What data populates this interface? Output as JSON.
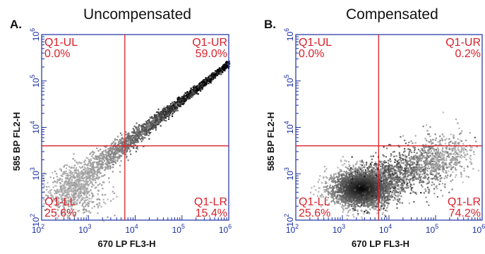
{
  "colors": {
    "axis": "#1a2fa0",
    "gate": "#d9202a",
    "density_low": "#c8c8c8",
    "density_high": "#000000"
  },
  "chart_data": [
    {
      "type": "scatter",
      "panel_letter": "A.",
      "title": "Uncompensated",
      "xlabel": "670 LP FL3-H",
      "ylabel": "585 BP FL2-H",
      "x_scale": "log",
      "y_scale": "log",
      "xlim": [
        100,
        1000000
      ],
      "ylim": [
        100,
        1000000
      ],
      "x_ticks": [
        {
          "base": "10",
          "exp": "2"
        },
        {
          "base": "10",
          "exp": "3"
        },
        {
          "base": "10",
          "exp": "4"
        },
        {
          "base": "10",
          "exp": "5"
        },
        {
          "base": "10",
          "exp": "6"
        }
      ],
      "y_ticks": [
        {
          "base": "10",
          "exp": "2"
        },
        {
          "base": "10",
          "exp": "3"
        },
        {
          "base": "10",
          "exp": "4"
        },
        {
          "base": "10",
          "exp": "5"
        },
        {
          "base": "10",
          "exp": "6"
        }
      ],
      "quadrant_divider": {
        "x": 6000,
        "y": 4000
      },
      "quadrants": [
        {
          "name": "Q1-UL",
          "value": "0.0%",
          "corner": "top-left"
        },
        {
          "name": "Q1-UR",
          "value": "59.0%",
          "corner": "top-right"
        },
        {
          "name": "Q1-LL",
          "value": "25.6%",
          "corner": "bottom-left"
        },
        {
          "name": "Q1-LR",
          "value": "15.4%",
          "corner": "bottom-right"
        }
      ],
      "population": {
        "shape": "diagonal",
        "from": [
          200,
          300
        ],
        "to": [
          1000000,
          250000
        ]
      }
    },
    {
      "type": "scatter",
      "panel_letter": "B.",
      "title": "Compensated",
      "xlabel": "670 LP FL3-H",
      "ylabel": "585 BP FL2-H",
      "x_scale": "log",
      "y_scale": "log",
      "xlim": [
        100,
        1000000
      ],
      "ylim": [
        100,
        1000000
      ],
      "x_ticks": [
        {
          "base": "10",
          "exp": "2"
        },
        {
          "base": "10",
          "exp": "3"
        },
        {
          "base": "10",
          "exp": "4"
        },
        {
          "base": "10",
          "exp": "5"
        },
        {
          "base": "10",
          "exp": "6"
        }
      ],
      "y_ticks": [
        {
          "base": "10",
          "exp": "2"
        },
        {
          "base": "10",
          "exp": "3"
        },
        {
          "base": "10",
          "exp": "4"
        },
        {
          "base": "10",
          "exp": "5"
        },
        {
          "base": "10",
          "exp": "6"
        }
      ],
      "quadrant_divider": {
        "x": 6000,
        "y": 4000
      },
      "quadrants": [
        {
          "name": "Q1-UL",
          "value": "0.0%",
          "corner": "top-left"
        },
        {
          "name": "Q1-UR",
          "value": "0.2%",
          "corner": "top-right"
        },
        {
          "name": "Q1-LL",
          "value": "25.6%",
          "corner": "bottom-left"
        },
        {
          "name": "Q1-LR",
          "value": "74.2%",
          "corner": "bottom-right"
        }
      ],
      "population": {
        "shape": "blob",
        "center": [
          2500,
          500
        ],
        "extends_to": [
          300000,
          3000
        ]
      }
    }
  ]
}
